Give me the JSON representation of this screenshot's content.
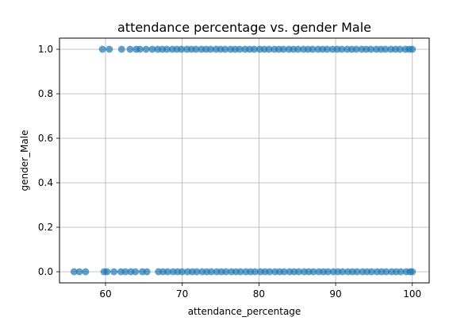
{
  "chart_data": {
    "type": "scatter",
    "title": "attendance percentage vs. gender Male",
    "xlabel": "attendance_percentage",
    "ylabel": "gender_Male",
    "xlim": [
      54.0,
      102.2
    ],
    "ylim": [
      -0.05,
      1.05
    ],
    "xticks": [
      60,
      70,
      80,
      90,
      100
    ],
    "yticks": [
      0.0,
      0.2,
      0.4,
      0.6,
      0.8,
      1.0
    ],
    "xtick_labels": [
      "60",
      "70",
      "80",
      "90",
      "100"
    ],
    "ytick_labels": [
      "0.0",
      "0.2",
      "0.4",
      "0.6",
      "0.8",
      "1.0"
    ],
    "grid": true,
    "legend": "none",
    "marker_color": "#1f77b4",
    "marker_alpha": 0.7,
    "series": [
      {
        "y": 1,
        "x": [
          59.6,
          60.5,
          62.1,
          63.2,
          64.0,
          64.5,
          65.3,
          66.1,
          66.8,
          67.4,
          68.0,
          68.7,
          69.3,
          69.9,
          70.6,
          71.2,
          71.8,
          72.5,
          73.1,
          73.7,
          74.4,
          75.0,
          75.6,
          76.3,
          76.9,
          77.5,
          78.2,
          78.8,
          79.4,
          80.1,
          80.7,
          81.3,
          82.0,
          82.6,
          83.2,
          83.9,
          84.5,
          85.1,
          85.8,
          86.4,
          87.0,
          87.7,
          88.3,
          88.9,
          89.6,
          90.2,
          90.8,
          91.5,
          92.1,
          92.7,
          93.4,
          94.0,
          94.6,
          95.3,
          95.9,
          96.5,
          97.2,
          97.8,
          98.4,
          99.1,
          99.6,
          100.0
        ]
      },
      {
        "y": 0,
        "x": [
          55.9,
          56.6,
          57.4,
          59.8,
          60.2,
          61.1,
          62.0,
          62.6,
          63.3,
          63.9,
          64.8,
          65.4,
          66.9,
          67.5,
          68.1,
          68.8,
          69.4,
          70.0,
          70.7,
          71.3,
          71.9,
          72.6,
          73.2,
          73.8,
          74.5,
          75.1,
          75.7,
          76.4,
          77.0,
          77.6,
          78.3,
          78.9,
          79.5,
          80.2,
          80.8,
          81.4,
          82.1,
          82.7,
          83.3,
          84.0,
          84.6,
          85.2,
          85.9,
          86.5,
          87.1,
          87.8,
          88.4,
          89.0,
          89.7,
          90.3,
          90.9,
          91.6,
          92.2,
          92.8,
          93.5,
          94.1,
          94.7,
          95.4,
          96.0,
          96.6,
          97.3,
          97.9,
          98.5,
          99.2,
          99.7,
          100.0
        ]
      }
    ]
  }
}
